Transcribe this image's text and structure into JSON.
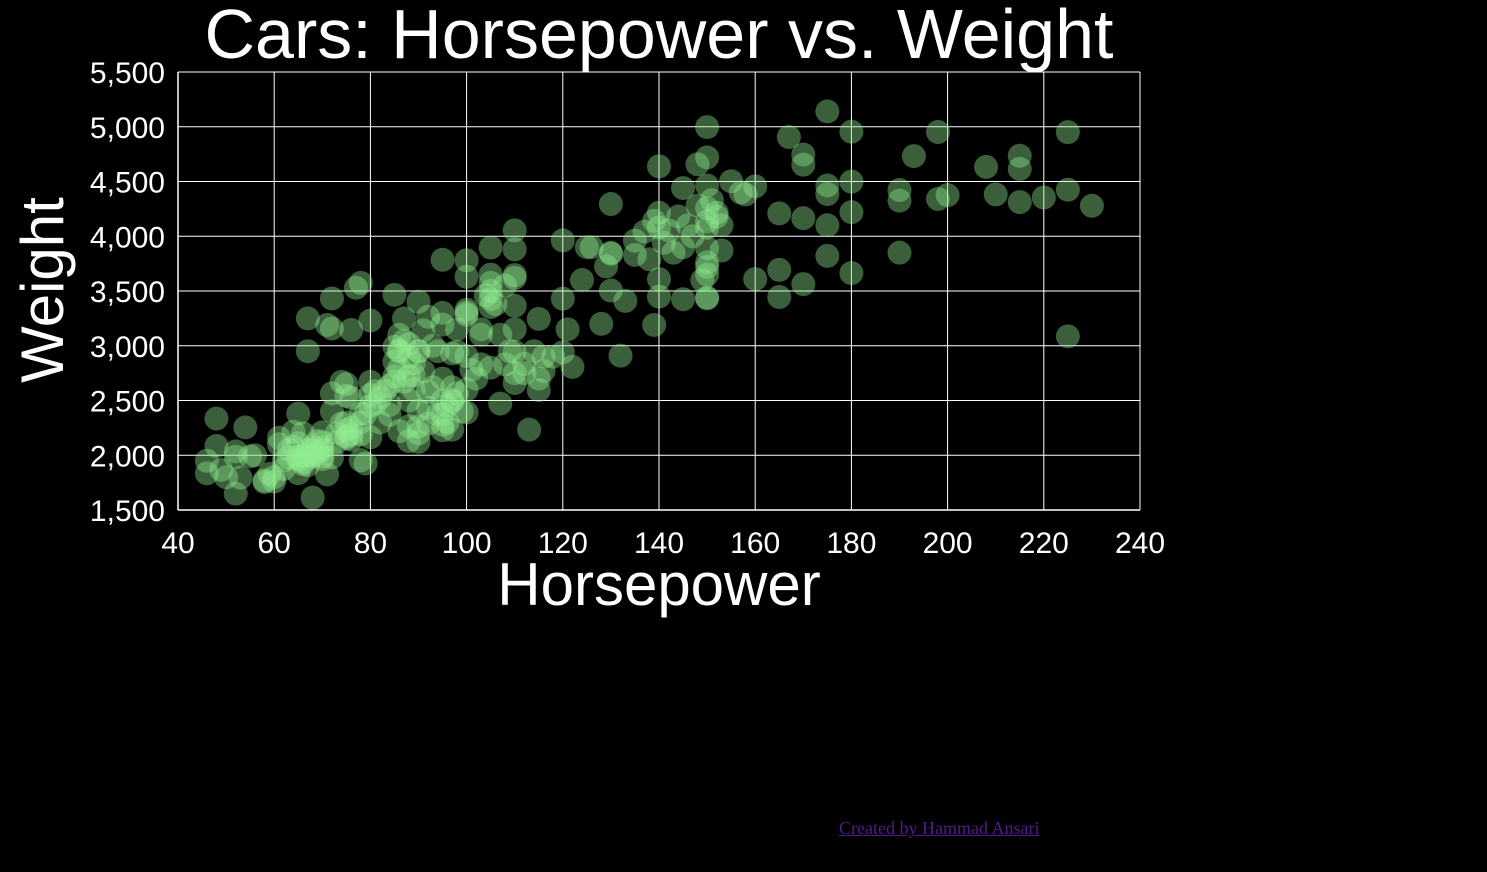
{
  "chart_data": {
    "type": "scatter",
    "title": "Cars: Horsepower vs. Weight",
    "xlabel": "Horsepower",
    "ylabel": "Weight",
    "xlim": [
      40,
      240
    ],
    "ylim": [
      1500,
      5500
    ],
    "xticks": [
      40,
      60,
      80,
      100,
      120,
      140,
      160,
      180,
      200,
      220,
      240
    ],
    "yticks": [
      1500,
      2000,
      2500,
      3000,
      3500,
      4000,
      4500,
      5000,
      5500
    ],
    "xtick_labels": [
      "40",
      "60",
      "80",
      "100",
      "120",
      "140",
      "160",
      "180",
      "200",
      "220",
      "240"
    ],
    "ytick_labels": [
      "1,500",
      "2,000",
      "2,500",
      "3,000",
      "3,500",
      "4,000",
      "4,500",
      "5,000",
      "5,500"
    ],
    "grid": true,
    "point_color": "#90ee90",
    "background": "#000000",
    "points": [
      [
        46,
        1835
      ],
      [
        46,
        1950
      ],
      [
        48,
        2335
      ],
      [
        48,
        2085
      ],
      [
        49,
        1867
      ],
      [
        52,
        1649
      ],
      [
        52,
        2035
      ],
      [
        52,
        1985
      ],
      [
        53,
        1795
      ],
      [
        54,
        2254
      ],
      [
        58,
        1755
      ],
      [
        60,
        1800
      ],
      [
        60,
        1760
      ],
      [
        61,
        2100
      ],
      [
        61,
        2160
      ],
      [
        62,
        1875
      ],
      [
        63,
        2050
      ],
      [
        64,
        2215
      ],
      [
        65,
        1965
      ],
      [
        65,
        2380
      ],
      [
        65,
        1985
      ],
      [
        65,
        1836
      ],
      [
        66,
        2200
      ],
      [
        66,
        1940
      ],
      [
        67,
        2950
      ],
      [
        67,
        3250
      ],
      [
        67,
        1995
      ],
      [
        67,
        2050
      ],
      [
        68,
        2045
      ],
      [
        68,
        1613
      ],
      [
        68,
        2000
      ],
      [
        69,
        2130
      ],
      [
        70,
        1965
      ],
      [
        70,
        2070
      ],
      [
        70,
        1990
      ],
      [
        70,
        2120
      ],
      [
        71,
        1825
      ],
      [
        71,
        3190
      ],
      [
        72,
        2401
      ],
      [
        72,
        3432
      ],
      [
        72,
        3158
      ],
      [
        72,
        2565
      ],
      [
        74,
        2670
      ],
      [
        75,
        2230
      ],
      [
        75,
        2171
      ],
      [
        75,
        2155
      ],
      [
        75,
        2542
      ],
      [
        75,
        2300
      ],
      [
        76,
        3144
      ],
      [
        76,
        2144
      ],
      [
        76,
        2525
      ],
      [
        77,
        3530
      ],
      [
        78,
        1955
      ],
      [
        78,
        2190
      ],
      [
        78,
        2300
      ],
      [
        78,
        3574
      ],
      [
        79,
        1925
      ],
      [
        80,
        2164
      ],
      [
        80,
        2670
      ],
      [
        80,
        3230
      ],
      [
        81,
        2585
      ],
      [
        83,
        2590
      ],
      [
        84,
        2370
      ],
      [
        85,
        2990
      ],
      [
        85,
        3465
      ],
      [
        85,
        2670
      ],
      [
        85,
        2855
      ],
      [
        86,
        2220
      ],
      [
        86,
        2790
      ],
      [
        87,
        2672
      ],
      [
        88,
        2265
      ],
      [
        88,
        2500
      ],
      [
        88,
        3015
      ],
      [
        88,
        2130
      ],
      [
        89,
        2730
      ],
      [
        90,
        2950
      ],
      [
        90,
        2264
      ],
      [
        90,
        3403
      ],
      [
        90,
        2408
      ],
      [
        90,
        2123
      ],
      [
        91,
        3140
      ],
      [
        92,
        2434
      ],
      [
        92,
        2288
      ],
      [
        92,
        3265
      ],
      [
        93,
        2620
      ],
      [
        94,
        2374
      ],
      [
        95,
        2228
      ],
      [
        95,
        3785
      ],
      [
        95,
        3193
      ],
      [
        95,
        2279
      ],
      [
        96,
        2300
      ],
      [
        97,
        2506
      ],
      [
        97,
        2489
      ],
      [
        97,
        2234
      ],
      [
        98,
        2945
      ],
      [
        98,
        2565
      ],
      [
        100,
        3329
      ],
      [
        100,
        3781
      ],
      [
        100,
        3630
      ],
      [
        100,
        3302
      ],
      [
        100,
        3282
      ],
      [
        100,
        2905
      ],
      [
        102,
        2700
      ],
      [
        103,
        2830
      ],
      [
        105,
        3574
      ],
      [
        105,
        3897
      ],
      [
        105,
        3353
      ],
      [
        105,
        3425
      ],
      [
        105,
        2800
      ],
      [
        107,
        2472
      ],
      [
        108,
        2830
      ],
      [
        110,
        3620
      ],
      [
        110,
        3645
      ],
      [
        110,
        3880
      ],
      [
        110,
        2945
      ],
      [
        110,
        2660
      ],
      [
        110,
        3365
      ],
      [
        110,
        4054
      ],
      [
        112,
        2835
      ],
      [
        113,
        2234
      ],
      [
        115,
        2595
      ],
      [
        115,
        2700
      ],
      [
        115,
        3245
      ],
      [
        116,
        2900
      ],
      [
        120,
        3962
      ],
      [
        120,
        3430
      ],
      [
        122,
        2807
      ],
      [
        125,
        3900
      ],
      [
        129,
        3725
      ],
      [
        130,
        3504
      ],
      [
        130,
        4294
      ],
      [
        130,
        3840
      ],
      [
        132,
        2910
      ],
      [
        133,
        3410
      ],
      [
        135,
        3830
      ],
      [
        137,
        4042
      ],
      [
        139,
        3190
      ],
      [
        140,
        4080
      ],
      [
        140,
        4215
      ],
      [
        140,
        3609
      ],
      [
        140,
        4638
      ],
      [
        140,
        3449
      ],
      [
        142,
        4054
      ],
      [
        145,
        4440
      ],
      [
        145,
        3425
      ],
      [
        148,
        4657
      ],
      [
        150,
        4720
      ],
      [
        150,
        4464
      ],
      [
        150,
        4997
      ],
      [
        150,
        3433
      ],
      [
        150,
        3761
      ],
      [
        150,
        4135
      ],
      [
        150,
        3892
      ],
      [
        150,
        4077
      ],
      [
        150,
        4257
      ],
      [
        152,
        4215
      ],
      [
        153,
        4100
      ],
      [
        155,
        4502
      ],
      [
        158,
        4382
      ],
      [
        160,
        3609
      ],
      [
        160,
        4456
      ],
      [
        165,
        4209
      ],
      [
        165,
        3693
      ],
      [
        165,
        3445
      ],
      [
        167,
        4906
      ],
      [
        170,
        4746
      ],
      [
        170,
        3563
      ],
      [
        170,
        4654
      ],
      [
        170,
        4165
      ],
      [
        175,
        4385
      ],
      [
        175,
        4464
      ],
      [
        175,
        5140
      ],
      [
        175,
        4100
      ],
      [
        175,
        3821
      ],
      [
        180,
        4499
      ],
      [
        180,
        4955
      ],
      [
        180,
        3664
      ],
      [
        180,
        4220
      ],
      [
        190,
        4422
      ],
      [
        190,
        4325
      ],
      [
        190,
        3850
      ],
      [
        193,
        4732
      ],
      [
        198,
        4952
      ],
      [
        198,
        4341
      ],
      [
        200,
        4376
      ],
      [
        208,
        4633
      ],
      [
        210,
        4382
      ],
      [
        215,
        4735
      ],
      [
        215,
        4615
      ],
      [
        215,
        4312
      ],
      [
        220,
        4354
      ],
      [
        225,
        4951
      ],
      [
        225,
        3086
      ],
      [
        225,
        4425
      ],
      [
        230,
        4278
      ],
      [
        62,
        1950
      ],
      [
        64,
        2075
      ],
      [
        66,
        2000
      ],
      [
        68,
        1985
      ],
      [
        69,
        2020
      ],
      [
        70,
        2045
      ],
      [
        72,
        1980
      ],
      [
        73,
        2120
      ],
      [
        74,
        2290
      ],
      [
        76,
        2190
      ],
      [
        79,
        2380
      ],
      [
        81,
        2470
      ],
      [
        82,
        2525
      ],
      [
        84,
        2635
      ],
      [
        85,
        2720
      ],
      [
        86,
        2945
      ],
      [
        87,
        3045
      ],
      [
        89,
        2600
      ],
      [
        89,
        2840
      ],
      [
        91,
        2765
      ],
      [
        92,
        2580
      ],
      [
        93,
        3000
      ],
      [
        94,
        2950
      ],
      [
        95,
        2700
      ],
      [
        96,
        2450
      ],
      [
        97,
        2930
      ],
      [
        98,
        3150
      ],
      [
        99,
        2400
      ],
      [
        100,
        2600
      ],
      [
        101,
        2780
      ],
      [
        103,
        3100
      ],
      [
        104,
        3460
      ],
      [
        106,
        3380
      ],
      [
        107,
        3100
      ],
      [
        108,
        3550
      ],
      [
        109,
        2950
      ],
      [
        110,
        3150
      ],
      [
        110,
        2750
      ],
      [
        112,
        2750
      ],
      [
        114,
        2950
      ],
      [
        116,
        2770
      ],
      [
        118,
        2900
      ],
      [
        120,
        2940
      ],
      [
        121,
        3150
      ],
      [
        124,
        3600
      ],
      [
        126,
        3900
      ],
      [
        128,
        3200
      ],
      [
        130,
        3850
      ],
      [
        135,
        3960
      ],
      [
        138,
        3790
      ],
      [
        139,
        4140
      ],
      [
        141,
        3940
      ],
      [
        143,
        3850
      ],
      [
        144,
        4180
      ],
      [
        146,
        4100
      ],
      [
        147,
        4000
      ],
      [
        149,
        3600
      ],
      [
        151,
        4330
      ],
      [
        153,
        3870
      ],
      [
        157,
        4400
      ],
      [
        145,
        3900
      ],
      [
        150,
        3650
      ],
      [
        150,
        3720
      ],
      [
        150,
        3440
      ],
      [
        152,
        4180
      ],
      [
        148,
        4280
      ],
      [
        105,
        3500
      ],
      [
        105,
        3650
      ],
      [
        103,
        3150
      ],
      [
        95,
        3300
      ],
      [
        95,
        2500
      ],
      [
        90,
        2200
      ],
      [
        90,
        2950
      ],
      [
        88,
        2900
      ],
      [
        87,
        3250
      ],
      [
        86,
        3100
      ],
      [
        84,
        2460
      ],
      [
        82,
        2300
      ],
      [
        80,
        2450
      ],
      [
        80,
        2550
      ],
      [
        78,
        2380
      ],
      [
        76,
        2250
      ],
      [
        75,
        2650
      ],
      [
        73,
        2200
      ],
      [
        70,
        2210
      ],
      [
        68,
        2080
      ],
      [
        67,
        1910
      ],
      [
        66,
        1920
      ],
      [
        65,
        2110
      ],
      [
        63,
        1980
      ],
      [
        59,
        1830
      ],
      [
        58,
        1770
      ],
      [
        56,
        2000
      ],
      [
        55,
        1990
      ],
      [
        50,
        1800
      ],
      [
        95,
        2375
      ],
      [
        97,
        2620
      ],
      [
        100,
        2390
      ],
      [
        88,
        2720
      ],
      [
        86,
        2960
      ]
    ]
  },
  "footer": {
    "credit_text": "Created by Hammad Ansari"
  }
}
